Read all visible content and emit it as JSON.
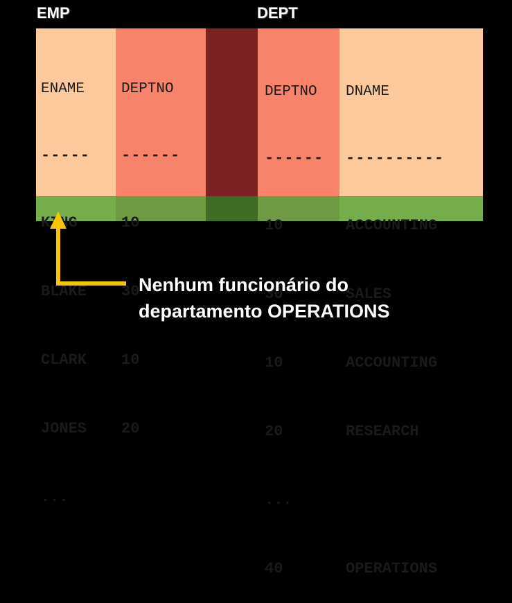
{
  "emp": {
    "title": "EMP",
    "headers": [
      "ENAME",
      "DEPTNO"
    ],
    "dashes": [
      "-----",
      "------"
    ],
    "rows": [
      [
        "KING",
        "10"
      ],
      [
        "BLAKE",
        "30"
      ],
      [
        "CLARK",
        "10"
      ],
      [
        "JONES",
        "20"
      ]
    ],
    "ellipsis": "..."
  },
  "dept": {
    "title": "DEPT",
    "headers": [
      "DEPTNO",
      "DNAME"
    ],
    "dashes": [
      "------",
      "----------"
    ],
    "rows": [
      [
        "10",
        "ACCOUNTING"
      ],
      [
        "30",
        "SALES"
      ],
      [
        "10",
        "ACCOUNTING"
      ],
      [
        "20",
        "RESEARCH"
      ]
    ],
    "ellipsis": "...",
    "highlight_row": [
      "40",
      "OPERATIONS"
    ]
  },
  "caption": {
    "line1": "Nenhum funcionário do",
    "line2": "departamento OPERATIONS"
  },
  "colors": {
    "background": "#000000",
    "light_orange": "#fbc99b",
    "salmon": "#f7846a",
    "dark_red": "#7b2323",
    "green_light": "#74ad4a",
    "green_mid": "#6f9a42",
    "green_dark": "#3f6b26",
    "arrow": "#f6c700"
  }
}
